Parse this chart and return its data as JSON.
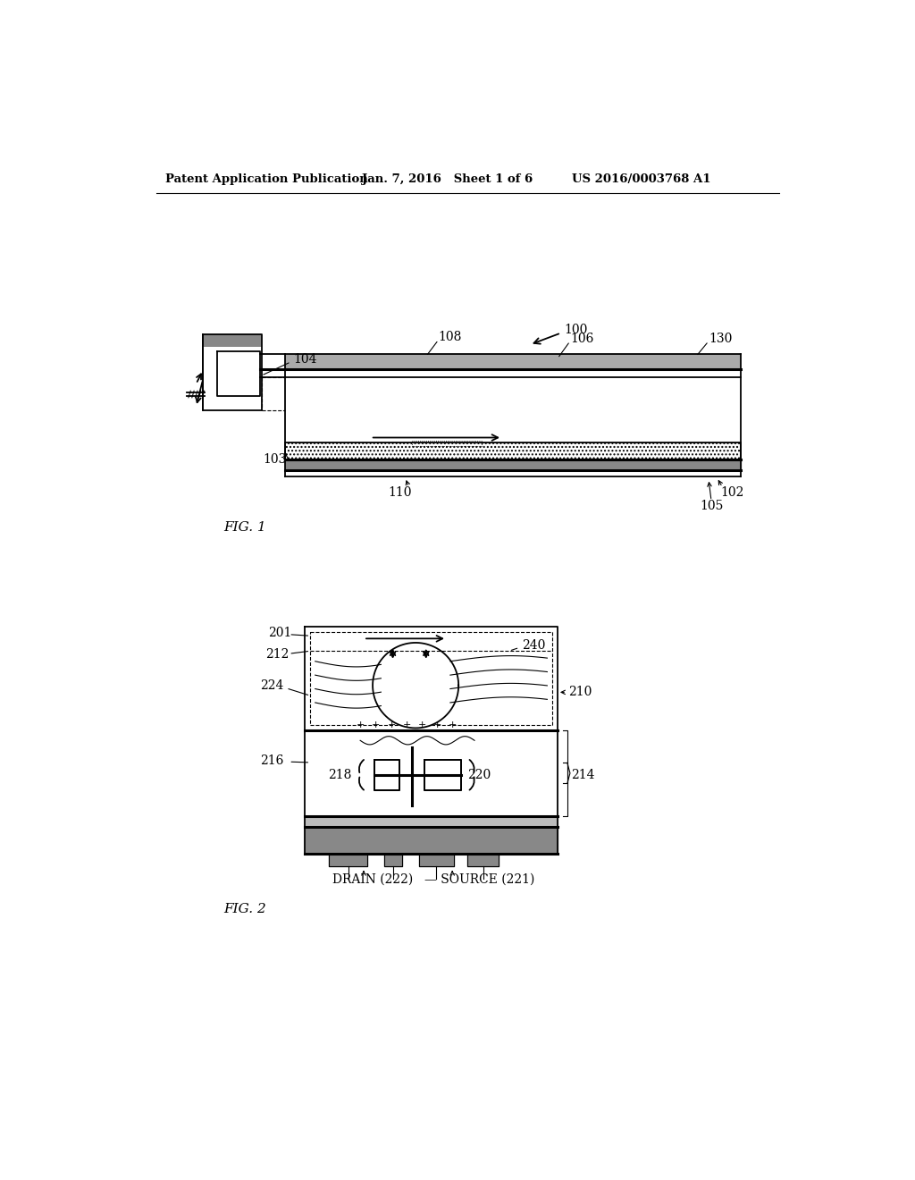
{
  "bg_color": "#ffffff",
  "text_color": "#000000",
  "header_left": "Patent Application Publication",
  "header_mid": "Jan. 7, 2016   Sheet 1 of 6",
  "header_right": "US 2016/0003768 A1",
  "fig1_label": "FIG. 1",
  "fig2_label": "FIG. 2",
  "ref100": "100",
  "ref102": "102",
  "ref103": "103",
  "ref104": "104",
  "ref105": "105",
  "ref106": "106",
  "ref108": "108",
  "ref110": "110",
  "ref130": "130",
  "ref201": "201",
  "ref210": "210",
  "ref212": "212",
  "ref214": "214",
  "ref216": "216",
  "ref218": "218",
  "ref220": "220",
  "ref224": "224",
  "ref240": "240",
  "drain_label": "DRAIN (222)",
  "source_label": "SOURCE (221)"
}
